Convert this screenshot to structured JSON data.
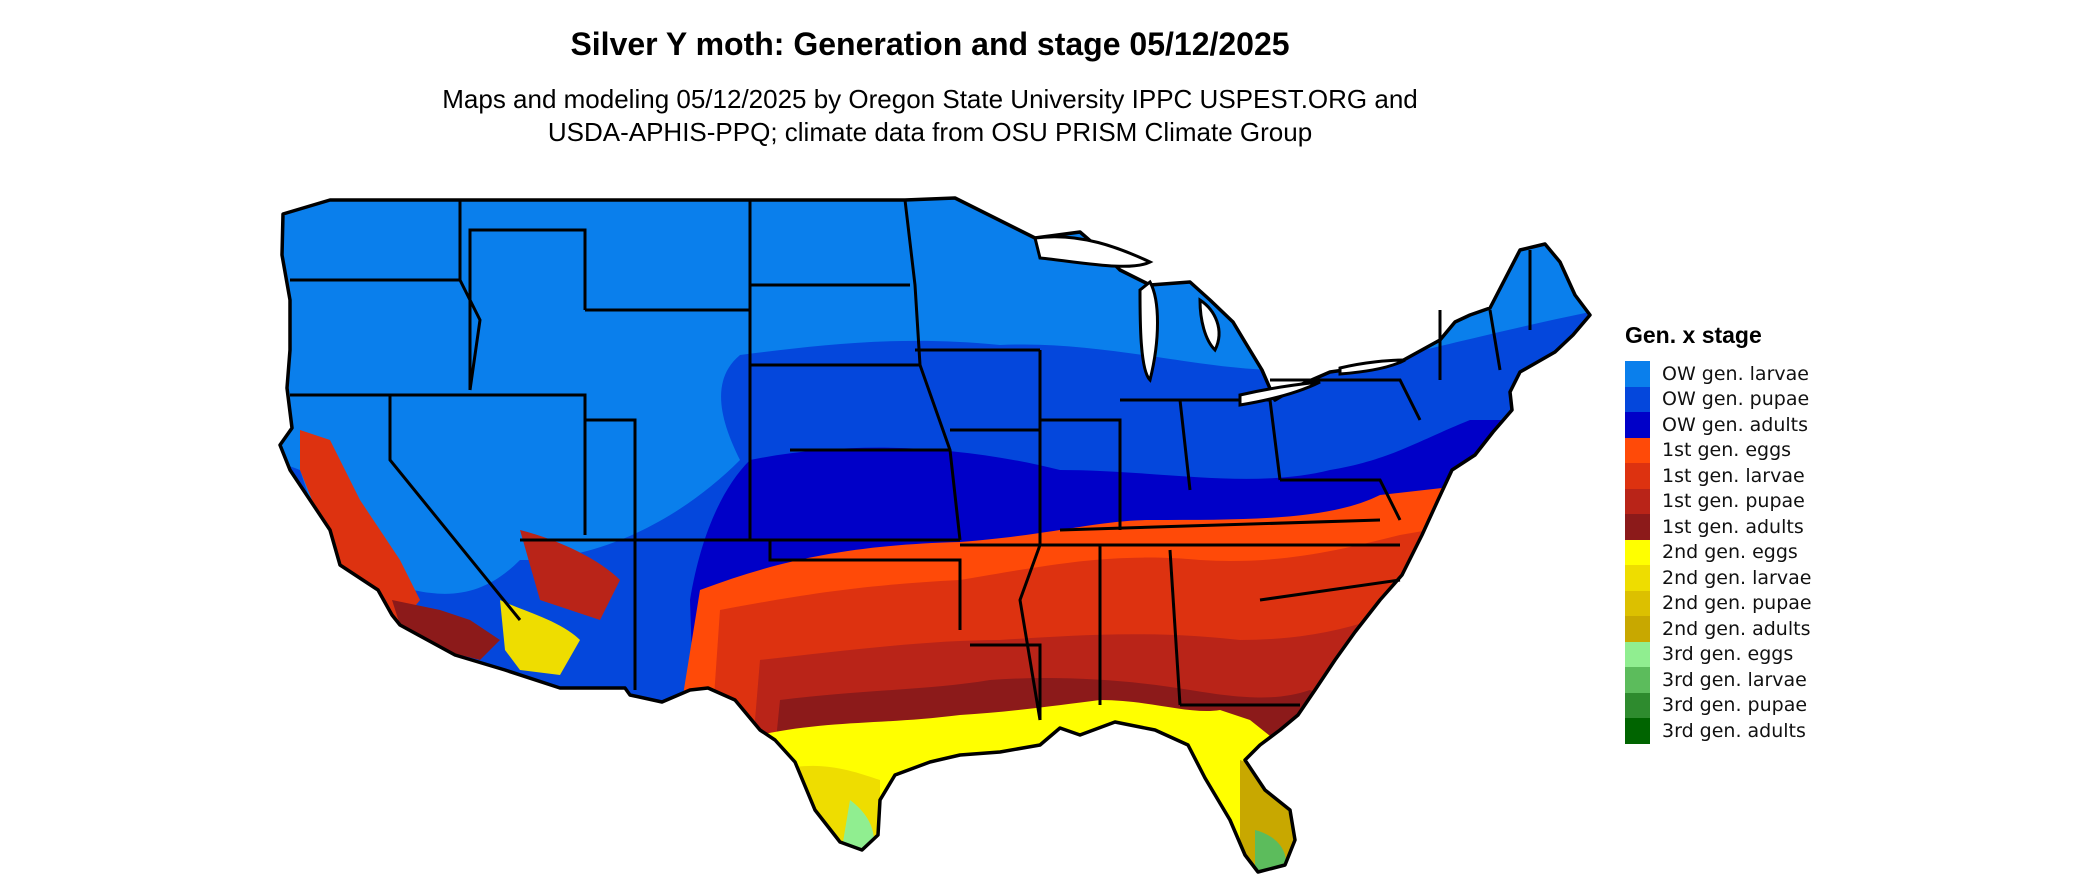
{
  "map": {
    "title": "Silver Y moth: Generation and stage 05/12/2025",
    "subtitle_line1": "Maps and modeling 05/12/2025 by Oregon State University IPPC USPEST.ORG and",
    "subtitle_line2": "USDA-APHIS-PPQ; climate data from OSU PRISM Climate Group",
    "region": "Contiguous United States"
  },
  "legend": {
    "title": "Gen. x stage",
    "items": [
      {
        "label": "OW gen. larvae",
        "color": "#0a7fec"
      },
      {
        "label": "OW gen. pupae",
        "color": "#0447dc"
      },
      {
        "label": "OW gen. adults",
        "color": "#0000c8"
      },
      {
        "label": "1st gen. eggs",
        "color": "#ff4a08"
      },
      {
        "label": "1st gen. larvae",
        "color": "#dd3210"
      },
      {
        "label": "1st gen. pupae",
        "color": "#b92418"
      },
      {
        "label": "1st gen. adults",
        "color": "#8c1a1a"
      },
      {
        "label": "2nd gen. eggs",
        "color": "#ffff00"
      },
      {
        "label": "2nd gen. larvae",
        "color": "#eedd00"
      },
      {
        "label": "2nd gen. pupae",
        "color": "#dcc000"
      },
      {
        "label": "2nd gen. adults",
        "color": "#c8a800"
      },
      {
        "label": "3rd gen. eggs",
        "color": "#90ee90"
      },
      {
        "label": "3rd gen. larvae",
        "color": "#5cbc5c"
      },
      {
        "label": "3rd gen. pupae",
        "color": "#2e8b2e"
      },
      {
        "label": "3rd gen. adults",
        "color": "#006400"
      }
    ]
  }
}
